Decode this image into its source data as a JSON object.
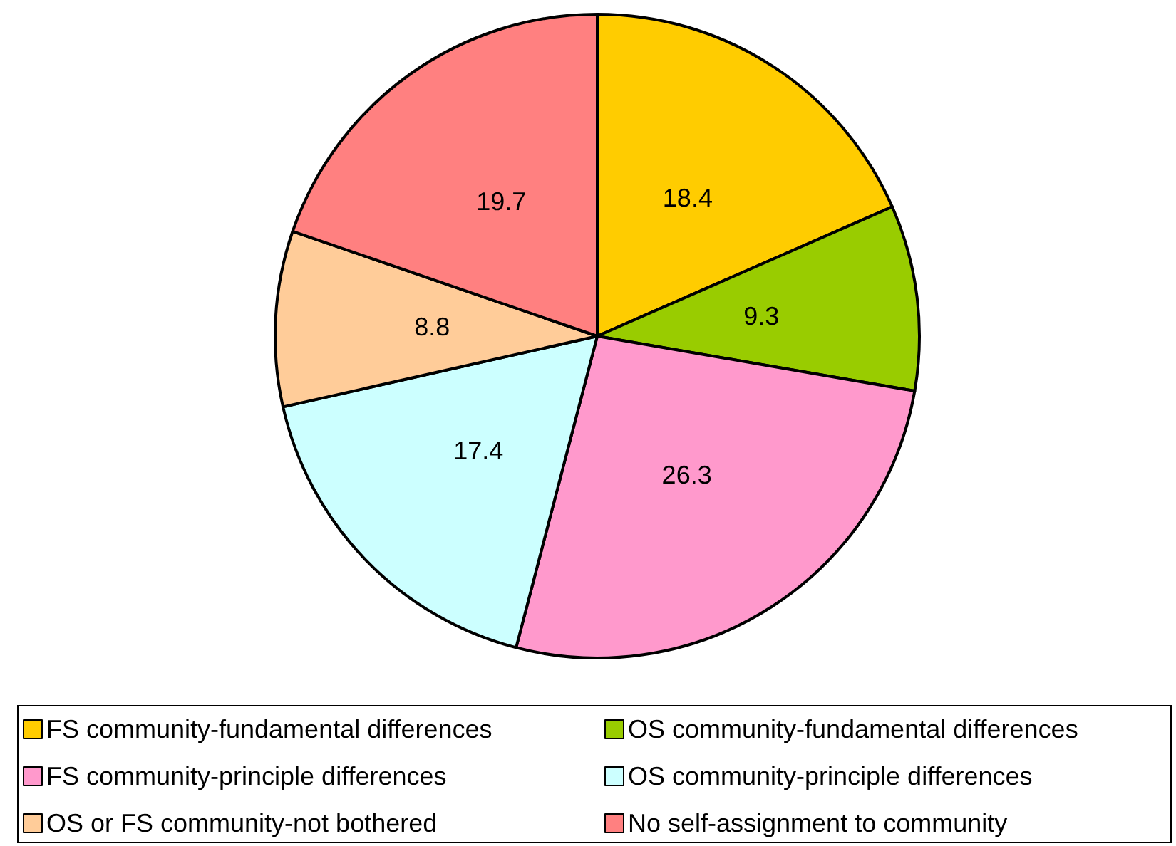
{
  "chart_data": {
    "type": "pie",
    "categories": [
      "FS community-fundamental differences",
      "OS community-fundamental differences",
      "FS community-principle differences",
      "OS community-principle differences",
      "OS or FS community-not bothered",
      "No self-assignment to community"
    ],
    "values": [
      18.4,
      9.3,
      26.3,
      17.4,
      8.8,
      19.7
    ],
    "colors": [
      "#ffcc00",
      "#99cc00",
      "#ff99cc",
      "#ccffff",
      "#ffcc99",
      "#ff8080"
    ],
    "data_labels": true,
    "legend": "bottom"
  }
}
